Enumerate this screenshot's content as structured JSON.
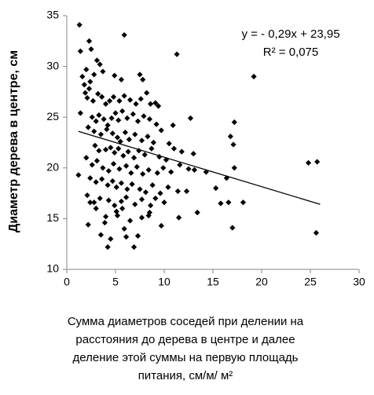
{
  "chart_data": {
    "type": "scatter",
    "y_label": "Диаметр  дерева в центре, см",
    "x_label": [
      "Сумма  диаметров соседей при делении на",
      "расстояния до дерева в центре и далее",
      "деление этой суммы на  первую площадь",
      "питания,  см/м/ м²"
    ],
    "annotations": [
      "y = - 0,29x + 23,95",
      "R² = 0,075"
    ],
    "trendline": {
      "slope": -0.29,
      "intercept": 23.95,
      "xlim": [
        1.2,
        26
      ]
    },
    "color": "#000000",
    "xlim": [
      0,
      30
    ],
    "xticks": [
      0,
      5,
      10,
      15,
      20,
      25,
      30
    ],
    "ylim": [
      10,
      35
    ],
    "yticks": [
      10,
      15,
      20,
      25,
      30,
      35
    ],
    "x": [
      1.3,
      1.4,
      2.3,
      2.5,
      5.9,
      11.3,
      19.2,
      1.6,
      2.0,
      1.8,
      2.4,
      2.8,
      3.1,
      3.4,
      3.7,
      4.9,
      5.6,
      7.5,
      7.8,
      1.9,
      2.3,
      2.1,
      2.7,
      3.2,
      3.6,
      4.0,
      4.4,
      4.8,
      5.4,
      5.9,
      6.5,
      7.1,
      7.6,
      8.2,
      8.6,
      9.1,
      9.4,
      1.4,
      2.6,
      3.0,
      3.3,
      3.8,
      4.2,
      4.6,
      5.0,
      5.3,
      5.7,
      6.2,
      6.8,
      7.3,
      7.9,
      8.5,
      9.2,
      2.2,
      2.8,
      3.5,
      4.1,
      4.7,
      5.2,
      5.5,
      6.0,
      6.4,
      7.0,
      7.7,
      8.3,
      8.9,
      9.7,
      10.5,
      10.9,
      12.7,
      16.8,
      17.2,
      17.1,
      2.9,
      3.3,
      4.0,
      4.5,
      4.9,
      5.3,
      5.8,
      6.3,
      6.9,
      7.4,
      8.0,
      8.7,
      9.5,
      10.2,
      11.0,
      11.8,
      13.0,
      2.0,
      2.6,
      3.1,
      3.7,
      4.3,
      4.8,
      5.4,
      6.1,
      6.6,
      7.2,
      7.8,
      8.4,
      9.3,
      9.9,
      10.7,
      11.6,
      12.5,
      13.1,
      14.3,
      17.2,
      24.8,
      25.7,
      1.2,
      2.4,
      3.0,
      3.6,
      4.2,
      4.7,
      5.1,
      5.6,
      6.2,
      6.7,
      7.5,
      8.1,
      8.8,
      9.6,
      10.4,
      11.4,
      12.3,
      15.3,
      16.4,
      2.1,
      2.8,
      3.4,
      4.3,
      4.9,
      5.6,
      6.1,
      7.0,
      7.7,
      8.6,
      9.1,
      10.0,
      15.8,
      16.6,
      18.1,
      2.4,
      3.0,
      5.1,
      5.2,
      4.0,
      5.7,
      7.7,
      8.4,
      8.5,
      11.5,
      13.4,
      2.2,
      3.5,
      4.5,
      4.2,
      5.9,
      6.1,
      7.3,
      6.9,
      9.7,
      17.0,
      25.6,
      6.5,
      3.9
    ],
    "values": [
      34.1,
      31.5,
      32.5,
      31.7,
      33.1,
      31.2,
      29.0,
      29.0,
      29.7,
      28.2,
      28.5,
      29.2,
      30.6,
      30.2,
      29.5,
      29.1,
      28.7,
      29.2,
      28.7,
      27.4,
      27.8,
      26.9,
      26.6,
      27.3,
      27.0,
      26.3,
      26.6,
      27.0,
      26.6,
      27.1,
      26.7,
      26.3,
      26.8,
      27.4,
      26.3,
      26.4,
      26.1,
      25.4,
      25.0,
      24.6,
      25.2,
      24.8,
      24.2,
      24.9,
      25.4,
      24.7,
      25.6,
      24.9,
      25.3,
      24.6,
      25.1,
      24.8,
      24.3,
      24.0,
      23.6,
      23.3,
      23.8,
      23.4,
      23.0,
      22.6,
      23.5,
      22.8,
      23.3,
      22.7,
      23.1,
      22.5,
      23.7,
      22.4,
      24.2,
      24.9,
      23.1,
      24.5,
      22.3,
      22.2,
      21.7,
      21.8,
      22.0,
      21.5,
      21.9,
      21.2,
      21.6,
      21.0,
      21.7,
      21.3,
      21.9,
      21.1,
      20.8,
      21.9,
      21.6,
      21.4,
      21.0,
      20.3,
      20.7,
      20.0,
      19.7,
      20.4,
      19.9,
      20.2,
      19.5,
      20.1,
      19.4,
      19.8,
      19.5,
      20.0,
      19.6,
      20.3,
      19.9,
      19.8,
      19.6,
      20.0,
      20.5,
      20.6,
      19.3,
      19.0,
      18.6,
      18.9,
      18.3,
      18.7,
      18.1,
      18.5,
      17.9,
      18.4,
      17.9,
      17.6,
      18.3,
      17.5,
      18.1,
      17.7,
      17.7,
      18.0,
      19.0,
      17.3,
      16.6,
      17.0,
      16.8,
      16.3,
      16.7,
      17.1,
      16.4,
      16.9,
      16.3,
      17.0,
      16.6,
      16.5,
      16.6,
      16.6,
      16.6,
      16.0,
      15.7,
      15.3,
      15.2,
      16.0,
      15.1,
      15.3,
      15.6,
      15.1,
      15.6,
      14.4,
      13.4,
      13.0,
      12.2,
      14.0,
      13.2,
      13.3,
      12.2,
      14.3,
      14.1,
      13.6,
      14.8,
      14.6
    ]
  }
}
